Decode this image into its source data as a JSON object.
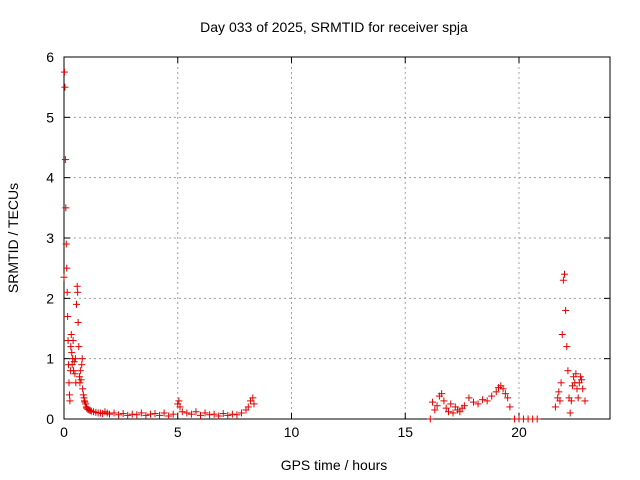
{
  "chart_data": {
    "type": "scatter",
    "title": "Day 033 of 2025, SRMTID for receiver spja",
    "xlabel": "GPS time / hours",
    "ylabel": "SRMTID / TECUs",
    "xlim": [
      0,
      24
    ],
    "ylim": [
      0,
      6
    ],
    "xticks": [
      0,
      5,
      10,
      15,
      20
    ],
    "yticks": [
      0,
      1,
      2,
      3,
      4,
      5,
      6
    ],
    "grid": true,
    "marker": "+",
    "color": "#e00000",
    "series": [
      {
        "name": "SRMTID",
        "x": [
          0.0,
          0.02,
          0.04,
          0.06,
          0.08,
          0.1,
          0.12,
          0.14,
          0.16,
          0.18,
          0.2,
          0.22,
          0.24,
          0.26,
          0.28,
          0.3,
          0.32,
          0.34,
          0.36,
          0.38,
          0.4,
          0.42,
          0.45,
          0.48,
          0.5,
          0.52,
          0.55,
          0.58,
          0.6,
          0.62,
          0.65,
          0.68,
          0.7,
          0.72,
          0.75,
          0.78,
          0.8,
          0.82,
          0.85,
          0.88,
          0.9,
          0.92,
          0.95,
          0.98,
          1.0,
          1.05,
          1.1,
          1.15,
          1.2,
          1.3,
          1.4,
          1.5,
          1.6,
          1.7,
          1.8,
          1.9,
          2.0,
          2.2,
          2.4,
          2.6,
          2.8,
          3.0,
          3.2,
          3.4,
          3.6,
          3.8,
          4.0,
          4.2,
          4.4,
          4.6,
          4.8,
          5.0,
          5.05,
          5.1,
          5.2,
          5.4,
          5.6,
          5.8,
          6.0,
          6.2,
          6.4,
          6.6,
          6.8,
          7.0,
          7.2,
          7.4,
          7.6,
          7.8,
          8.0,
          8.1,
          8.2,
          8.3,
          8.35,
          16.1,
          16.2,
          16.3,
          16.4,
          16.5,
          16.6,
          16.7,
          16.8,
          16.9,
          17.0,
          17.1,
          17.2,
          17.3,
          17.4,
          17.5,
          17.6,
          17.8,
          18.0,
          18.2,
          18.4,
          18.6,
          18.8,
          19.0,
          19.1,
          19.2,
          19.3,
          19.4,
          19.5,
          19.6,
          19.8,
          20.0,
          20.2,
          20.4,
          20.6,
          20.8,
          21.6,
          21.7,
          21.75,
          21.8,
          21.85,
          21.9,
          21.95,
          22.0,
          22.05,
          22.1,
          22.15,
          22.2,
          22.25,
          22.3,
          22.35,
          22.4,
          22.45,
          22.5,
          22.55,
          22.6,
          22.65,
          22.7,
          22.75,
          22.8,
          22.9
        ],
        "y": [
          2.35,
          5.75,
          5.5,
          4.3,
          3.5,
          2.9,
          2.5,
          2.1,
          1.7,
          1.3,
          0.9,
          0.6,
          0.4,
          0.3,
          0.8,
          1.2,
          1.4,
          1.1,
          0.9,
          1.0,
          1.3,
          0.8,
          0.95,
          0.75,
          1.0,
          0.6,
          1.9,
          2.2,
          2.1,
          1.6,
          1.2,
          0.7,
          0.6,
          0.8,
          0.65,
          0.9,
          1.0,
          0.5,
          0.4,
          0.35,
          0.3,
          0.28,
          0.25,
          0.2,
          0.18,
          0.16,
          0.15,
          0.14,
          0.13,
          0.12,
          0.11,
          0.1,
          0.1,
          0.09,
          0.12,
          0.1,
          0.08,
          0.1,
          0.07,
          0.09,
          0.06,
          0.08,
          0.07,
          0.1,
          0.06,
          0.08,
          0.09,
          0.06,
          0.1,
          0.05,
          0.08,
          0.25,
          0.3,
          0.2,
          0.12,
          0.1,
          0.08,
          0.12,
          0.06,
          0.1,
          0.07,
          0.08,
          0.05,
          0.09,
          0.06,
          0.08,
          0.07,
          0.1,
          0.15,
          0.2,
          0.3,
          0.35,
          0.25,
          0.0,
          0.28,
          0.15,
          0.22,
          0.38,
          0.42,
          0.3,
          0.18,
          0.12,
          0.25,
          0.1,
          0.2,
          0.15,
          0.12,
          0.18,
          0.22,
          0.35,
          0.28,
          0.25,
          0.32,
          0.3,
          0.38,
          0.45,
          0.52,
          0.55,
          0.5,
          0.42,
          0.35,
          0.2,
          0.0,
          0.0,
          0.0,
          0.0,
          0.0,
          0.0,
          0.2,
          0.35,
          0.45,
          0.3,
          0.6,
          1.4,
          2.3,
          2.4,
          1.8,
          1.2,
          0.8,
          0.35,
          0.1,
          0.3,
          0.55,
          0.7,
          0.6,
          0.75,
          0.5,
          0.35,
          0.6,
          0.7,
          0.65,
          0.5,
          0.3
        ]
      }
    ]
  }
}
